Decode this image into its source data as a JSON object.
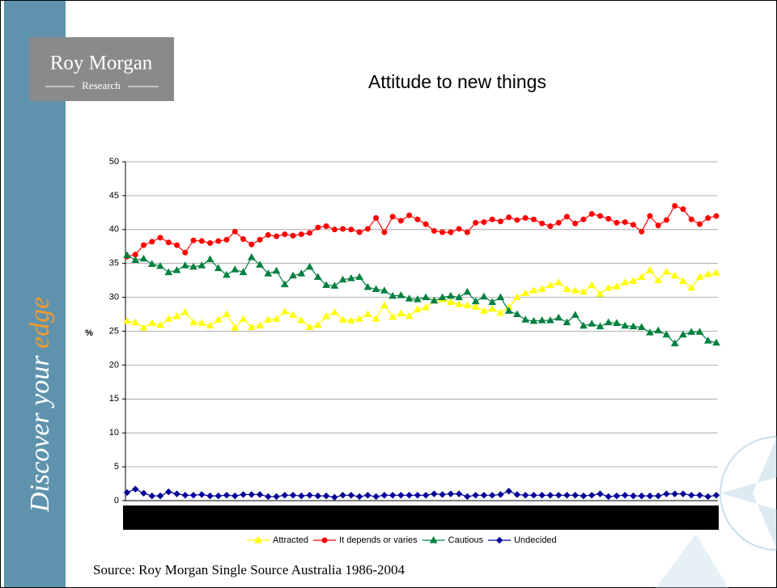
{
  "logo": {
    "name": "Roy Morgan",
    "sub": "Research"
  },
  "sidebar": {
    "lead": "Discover your",
    "accent": "edge"
  },
  "source": "Source: Roy Morgan Single Source Australia 1986-2004",
  "chart_data": {
    "type": "line",
    "title": "Attitude to new things",
    "y_label": "%",
    "ylim": [
      0,
      50
    ],
    "yticks": [
      0,
      5,
      10,
      15,
      20,
      25,
      30,
      35,
      40,
      45,
      50
    ],
    "grid": true,
    "legend": "bottom",
    "series": [
      {
        "name": "Attracted",
        "color": "#ffff00",
        "marker": "triangle",
        "values": [
          26.5,
          26.3,
          25.5,
          26.2,
          25.9,
          26.8,
          27.2,
          27.8,
          26.3,
          26.2,
          25.8,
          26.7,
          27.5,
          25.5,
          26.8,
          25.6,
          25.8,
          26.7,
          26.8,
          27.9,
          27.4,
          26.6,
          25.6,
          25.9,
          27.2,
          27.8,
          26.7,
          26.6,
          26.8,
          27.5,
          26.8,
          28.8,
          27.1,
          27.6,
          27.2,
          28.2,
          28.5,
          29.5,
          29.7,
          29.3,
          29.0,
          28.8,
          28.6,
          28.0,
          28.3,
          27.7,
          28.5,
          30.0,
          30.6,
          31.0,
          31.2,
          31.8,
          32.2,
          31.2,
          31.0,
          30.8,
          31.8,
          30.5,
          31.4,
          31.6,
          32.2,
          32.4,
          33.0,
          34.0,
          32.5,
          33.8,
          33.2,
          32.4,
          31.4,
          33.0,
          33.4,
          33.6
        ]
      },
      {
        "name": "It depends or varies",
        "color": "#ff0000",
        "marker": "circle",
        "values": [
          36.0,
          36.3,
          37.7,
          38.2,
          38.8,
          38.1,
          37.7,
          36.6,
          38.4,
          38.3,
          38.0,
          38.3,
          38.5,
          39.7,
          38.6,
          37.8,
          38.5,
          39.2,
          39.0,
          39.3,
          39.1,
          39.3,
          39.5,
          40.3,
          40.5,
          40.0,
          40.1,
          40.0,
          39.6,
          40.1,
          41.7,
          39.6,
          41.9,
          41.3,
          42.1,
          41.5,
          40.8,
          39.8,
          39.6,
          39.6,
          40.1,
          39.6,
          41.0,
          41.1,
          41.5,
          41.2,
          41.8,
          41.4,
          41.7,
          41.5,
          40.9,
          40.5,
          41.0,
          41.9,
          40.9,
          41.5,
          42.3,
          42.0,
          41.6,
          41.0,
          41.1,
          40.7,
          39.7,
          42.0,
          40.6,
          41.4,
          43.5,
          43.0,
          41.5,
          40.8,
          41.7,
          42.0
        ]
      },
      {
        "name": "Cautious",
        "color": "#008040",
        "marker": "triangle",
        "values": [
          36.2,
          35.5,
          35.7,
          34.9,
          34.6,
          33.7,
          34.0,
          34.7,
          34.5,
          34.7,
          35.6,
          34.3,
          33.3,
          34.1,
          33.7,
          35.9,
          34.8,
          33.5,
          33.9,
          31.9,
          33.2,
          33.5,
          34.5,
          33.0,
          31.8,
          31.7,
          32.6,
          32.8,
          33.0,
          31.5,
          31.2,
          31.0,
          30.2,
          30.3,
          29.8,
          29.7,
          30.0,
          29.5,
          30.0,
          30.2,
          30.0,
          30.8,
          29.4,
          30.1,
          29.3,
          30.0,
          28.0,
          27.5,
          26.7,
          26.5,
          26.6,
          26.6,
          27.0,
          26.3,
          27.4,
          25.8,
          26.1,
          25.7,
          26.3,
          26.2,
          25.8,
          25.7,
          25.6,
          24.8,
          25.1,
          24.5,
          23.2,
          24.5,
          24.9,
          24.9,
          23.6,
          23.3
        ]
      },
      {
        "name": "Undecided",
        "color": "#000099",
        "marker": "diamond",
        "values": [
          1.2,
          1.7,
          1.1,
          0.7,
          0.7,
          1.3,
          1.0,
          0.8,
          0.8,
          0.9,
          0.7,
          0.7,
          0.8,
          0.7,
          0.9,
          0.9,
          0.9,
          0.6,
          0.6,
          0.8,
          0.8,
          0.7,
          0.8,
          0.7,
          0.7,
          0.5,
          0.8,
          0.8,
          0.6,
          0.8,
          0.6,
          0.8,
          0.8,
          0.8,
          0.8,
          0.8,
          0.8,
          1.0,
          0.9,
          1.0,
          1.0,
          0.6,
          0.8,
          0.8,
          0.8,
          0.9,
          1.4,
          0.9,
          0.8,
          0.8,
          0.8,
          0.8,
          0.8,
          0.8,
          0.8,
          0.7,
          0.8,
          1.0,
          0.6,
          0.7,
          0.8,
          0.7,
          0.7,
          0.7,
          0.7,
          1.0,
          1.0,
          1.0,
          0.8,
          0.8,
          0.6,
          0.8
        ]
      }
    ]
  }
}
